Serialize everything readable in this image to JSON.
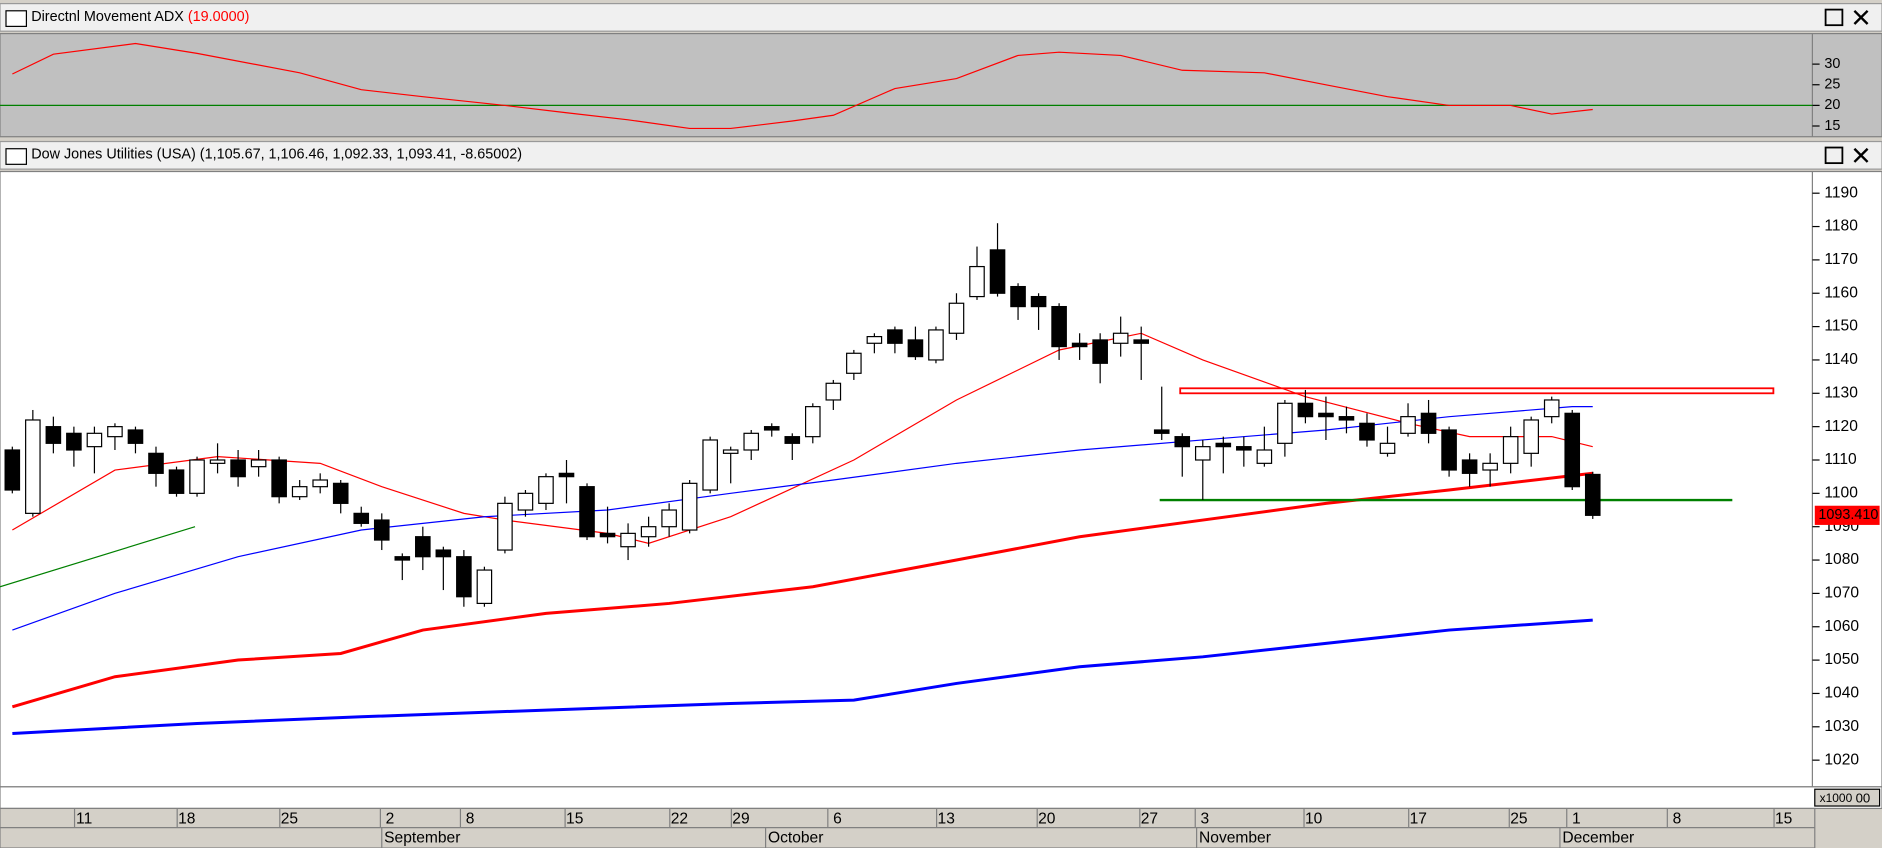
{
  "chart_data": [
    {
      "type": "line",
      "title": "Directnl Movement ADX",
      "title_value": "(19.0000)",
      "color": "#ff0000",
      "x": [
        0,
        2,
        6,
        9,
        14,
        17,
        20,
        24,
        27,
        30,
        33,
        35,
        38,
        40,
        43,
        46,
        49,
        51,
        54,
        57,
        61,
        64,
        67,
        70,
        73,
        75,
        77
      ],
      "values": [
        27.6,
        32.4,
        35,
        32.6,
        27.9,
        23.8,
        22.1,
        20,
        18.2,
        16.5,
        14.4,
        14.4,
        16.2,
        17.6,
        24.1,
        26.5,
        32.1,
        32.9,
        32.1,
        28.5,
        27.9,
        25,
        22.1,
        20,
        20,
        17.9,
        19
      ],
      "reference_line": {
        "value": 20,
        "color": "#008000"
      },
      "xlim": [
        -0.6,
        87.7
      ],
      "ylim": [
        12.4,
        37.4
      ],
      "yticks": [
        15,
        20,
        25,
        30
      ]
    },
    {
      "type": "candlestick",
      "title": "Dow Jones Utilities (USA) (1,105.67, 1,106.46, 1,092.33, 1,093.41, -8.65002)",
      "candles": {
        "x": [
          0,
          1,
          2,
          3,
          4,
          5,
          6,
          7,
          8,
          9,
          10,
          11,
          12,
          13,
          14,
          15,
          16,
          17,
          18,
          19,
          20,
          21,
          22,
          23,
          24,
          25,
          26,
          27,
          28,
          29,
          30,
          31,
          32,
          33,
          34,
          35,
          36,
          37,
          38,
          39,
          40,
          41,
          42,
          43,
          44,
          45,
          46,
          47,
          48,
          49,
          50,
          51,
          52,
          53,
          54,
          55,
          56,
          57,
          58,
          59,
          60,
          61,
          62,
          63,
          64,
          65,
          66,
          67,
          68,
          69,
          70,
          71,
          72,
          73,
          74,
          75,
          76,
          77
        ],
        "open": [
          1113,
          1094,
          1120,
          1118,
          1114,
          1117,
          1119,
          1112,
          1107,
          1100,
          1109,
          1110,
          1108,
          1110,
          1099,
          1102,
          1103,
          1094,
          1092,
          1081,
          1087,
          1083,
          1081,
          1067,
          1083,
          1095,
          1097,
          1106,
          1102,
          1088,
          1084,
          1087,
          1090,
          1089,
          1101,
          1112,
          1113,
          1120,
          1117,
          1117,
          1128,
          1136,
          1145,
          1149,
          1146,
          1140,
          1148,
          1159,
          1173,
          1162,
          1159,
          1156,
          1145,
          1146,
          1145,
          1146,
          1119,
          1117,
          1110,
          1115,
          1114,
          1109,
          1115,
          1127,
          1124,
          1123,
          1121,
          1112,
          1118,
          1124,
          1119,
          1110,
          1107,
          1109,
          1112,
          1123,
          1124,
          1105.67
        ],
        "high": [
          1114,
          1125,
          1123,
          1120,
          1120,
          1121,
          1120,
          1114,
          1108,
          1111,
          1115,
          1113,
          1113,
          1111,
          1104,
          1106,
          1104,
          1096,
          1094,
          1082,
          1090,
          1084,
          1083,
          1078,
          1099,
          1101,
          1106,
          1110,
          1103,
          1096,
          1091,
          1093,
          1097,
          1104,
          1117,
          1114,
          1119,
          1121,
          1118,
          1127,
          1134,
          1143,
          1148,
          1150,
          1150,
          1150,
          1160,
          1174,
          1181,
          1163,
          1160,
          1157,
          1148,
          1148,
          1153,
          1150,
          1132,
          1118,
          1116,
          1117,
          1117,
          1120,
          1128,
          1131,
          1129,
          1126,
          1124,
          1120,
          1127,
          1128,
          1120,
          1112,
          1112,
          1120,
          1123,
          1129,
          1125,
          1106.46
        ],
        "low": [
          1100,
          1093,
          1112,
          1108,
          1106,
          1113,
          1112,
          1102,
          1099,
          1099,
          1106,
          1102,
          1105,
          1097,
          1098,
          1100,
          1094,
          1090,
          1083,
          1074,
          1077,
          1071,
          1066,
          1066,
          1082,
          1093,
          1095,
          1097,
          1086,
          1085,
          1080,
          1084,
          1087,
          1088,
          1100,
          1103,
          1110,
          1117,
          1110,
          1115,
          1125,
          1134,
          1142,
          1142,
          1140,
          1139,
          1146,
          1158,
          1159,
          1152,
          1149,
          1140,
          1140,
          1133,
          1141,
          1134,
          1116,
          1105,
          1098,
          1106,
          1108,
          1108,
          1111,
          1121,
          1116,
          1118,
          1114,
          1111,
          1117,
          1115,
          1105,
          1102,
          1102,
          1106,
          1108,
          1121,
          1101,
          1092.33
        ],
        "close": [
          1101,
          1122,
          1115,
          1113,
          1118,
          1120,
          1115,
          1106,
          1100,
          1110,
          1110,
          1105,
          1110,
          1099,
          1102,
          1104,
          1097,
          1091,
          1086,
          1080,
          1081,
          1081,
          1069,
          1077,
          1097,
          1100,
          1105,
          1105,
          1087,
          1087,
          1088,
          1090,
          1095,
          1103,
          1116,
          1113,
          1118,
          1119,
          1115,
          1126,
          1133,
          1142,
          1147,
          1145,
          1141,
          1149,
          1157,
          1168,
          1160,
          1156,
          1156,
          1144,
          1144,
          1139,
          1148,
          1145,
          1118,
          1114,
          1114,
          1114,
          1113,
          1113,
          1127,
          1123,
          1123,
          1122,
          1116,
          1115,
          1123,
          1118,
          1107,
          1106,
          1109,
          1117,
          1122,
          1128,
          1102,
          1093.41
        ]
      },
      "up_color": "#ffffff",
      "down_color": "#000000",
      "moving_averages": [
        {
          "color": "#ff0000",
          "style": "thin",
          "x": [
            0,
            5,
            10,
            15,
            18,
            22,
            24,
            29,
            31,
            35,
            41,
            46,
            51,
            55,
            58,
            63,
            68,
            71,
            75,
            77
          ],
          "values": [
            1089,
            1107,
            1111,
            1109,
            1102,
            1094,
            1092,
            1088,
            1085,
            1093,
            1110,
            1128,
            1143,
            1148,
            1140,
            1129,
            1121,
            1117,
            1117,
            1114
          ]
        },
        {
          "color": "#0000ff",
          "style": "thin",
          "x": [
            0,
            5,
            11,
            17,
            23,
            29,
            35,
            40,
            46,
            52,
            58,
            64,
            70,
            76,
            77
          ],
          "values": [
            1059,
            1070,
            1081,
            1089,
            1093,
            1095,
            1100,
            1104,
            1109,
            1113,
            1116,
            1119,
            1123,
            1126,
            1126
          ]
        },
        {
          "color": "#ff0000",
          "style": "thick",
          "x": [
            0,
            5,
            11,
            16,
            20,
            26,
            32,
            39,
            46,
            52,
            58,
            64,
            70,
            77
          ],
          "values": [
            1036,
            1045,
            1050,
            1052,
            1059,
            1064,
            1067,
            1072,
            1080,
            1087,
            1092,
            1097,
            1101,
            1106
          ]
        },
        {
          "color": "#0000ff",
          "style": "thick",
          "x": [
            0,
            9,
            17,
            26,
            35,
            41,
            46,
            52,
            58,
            64,
            70,
            77
          ],
          "values": [
            1028,
            1031,
            1033,
            1035,
            1037,
            1038,
            1043,
            1048,
            1051,
            1055,
            1059,
            1062
          ]
        }
      ],
      "drawings": [
        {
          "kind": "line",
          "color": "#008000",
          "x": [
            -0.6,
            8.9
          ],
          "values": [
            1072,
            1090
          ]
        },
        {
          "kind": "line",
          "color": "#008000",
          "x": [
            55.9,
            83.8
          ],
          "values": [
            1098,
            1098
          ]
        },
        {
          "kind": "rect",
          "color": "#ff0000",
          "x": [
            56.9,
            85.8
          ],
          "values": [
            1130,
            1131.5
          ]
        }
      ],
      "last_label": "1093.410",
      "last_color": "#ff0000",
      "xlim": [
        -0.6,
        87.7
      ],
      "ylim": [
        1012,
        1196.5
      ],
      "yticks": [
        1020,
        1030,
        1040,
        1050,
        1060,
        1070,
        1080,
        1090,
        1100,
        1110,
        1120,
        1130,
        1140,
        1150,
        1160,
        1170,
        1180,
        1190
      ],
      "xticks": [
        {
          "value": 3.5,
          "label": "11"
        },
        {
          "value": 8.5,
          "label": "18"
        },
        {
          "value": 13.5,
          "label": "25"
        },
        {
          "value": 18.4,
          "label": "2"
        },
        {
          "value": 22.3,
          "label": "8"
        },
        {
          "value": 27.4,
          "label": "15"
        },
        {
          "value": 32.5,
          "label": "22"
        },
        {
          "value": 35.5,
          "label": "29"
        },
        {
          "value": 40.2,
          "label": "6"
        },
        {
          "value": 45.5,
          "label": "13"
        },
        {
          "value": 50.4,
          "label": "20"
        },
        {
          "value": 55.4,
          "label": "27"
        },
        {
          "value": 58.1,
          "label": "3"
        },
        {
          "value": 63.4,
          "label": "10"
        },
        {
          "value": 68.5,
          "label": "17"
        },
        {
          "value": 73.4,
          "label": "25"
        },
        {
          "value": 76.2,
          "label": "1"
        },
        {
          "value": 81.1,
          "label": "8"
        },
        {
          "value": 86.3,
          "label": "15"
        }
      ],
      "month_ticks": [
        {
          "value": 18.0,
          "label": "September"
        },
        {
          "value": 36.7,
          "label": "October"
        },
        {
          "value": 57.7,
          "label": "November"
        },
        {
          "value": 75.4,
          "label": "December"
        }
      ],
      "volume_unit": "x1000",
      "volume_tick": "00"
    }
  ]
}
